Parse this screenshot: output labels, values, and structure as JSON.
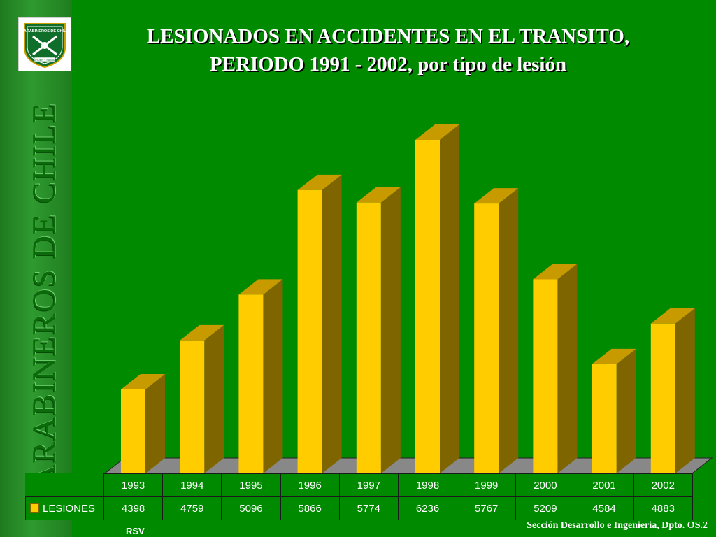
{
  "sidebar": {
    "text": "CARABINEROS DE CHILE",
    "logo": {
      "icon": "carabineros-crest-icon",
      "top_text": "CARABINEROS DE CHILE",
      "motto": "ORDEN Y PATRIA"
    }
  },
  "title": {
    "line1": "LESIONADOS EN ACCIDENTES EN EL TRANSITO,",
    "line2": "PERIODO 1991 - 2002, por tipo de lesión"
  },
  "chart_data": {
    "type": "bar",
    "title": "LESIONADOS EN ACCIDENTES EN EL TRANSITO, PERIODO 1991 - 2002, por tipo de lesión",
    "categories": [
      "1993",
      "1994",
      "1995",
      "1996",
      "1997",
      "1998",
      "1999",
      "2000",
      "2001",
      "2002"
    ],
    "series": [
      {
        "name": "LESIONES",
        "values": [
          4398,
          4759,
          5096,
          5866,
          5774,
          6236,
          5767,
          5209,
          4584,
          4883
        ]
      }
    ],
    "ylim": [
      3800,
      6400
    ],
    "three_d": true,
    "legend": "data-table",
    "colors": {
      "front": "#ffcc00",
      "top": "#c79a00",
      "side": "#7f6500",
      "floor": "#888888"
    }
  },
  "footer": {
    "note": "Sección Desarrollo e Ingenieria, Dpto. OS.2",
    "left_label": "RSV"
  }
}
